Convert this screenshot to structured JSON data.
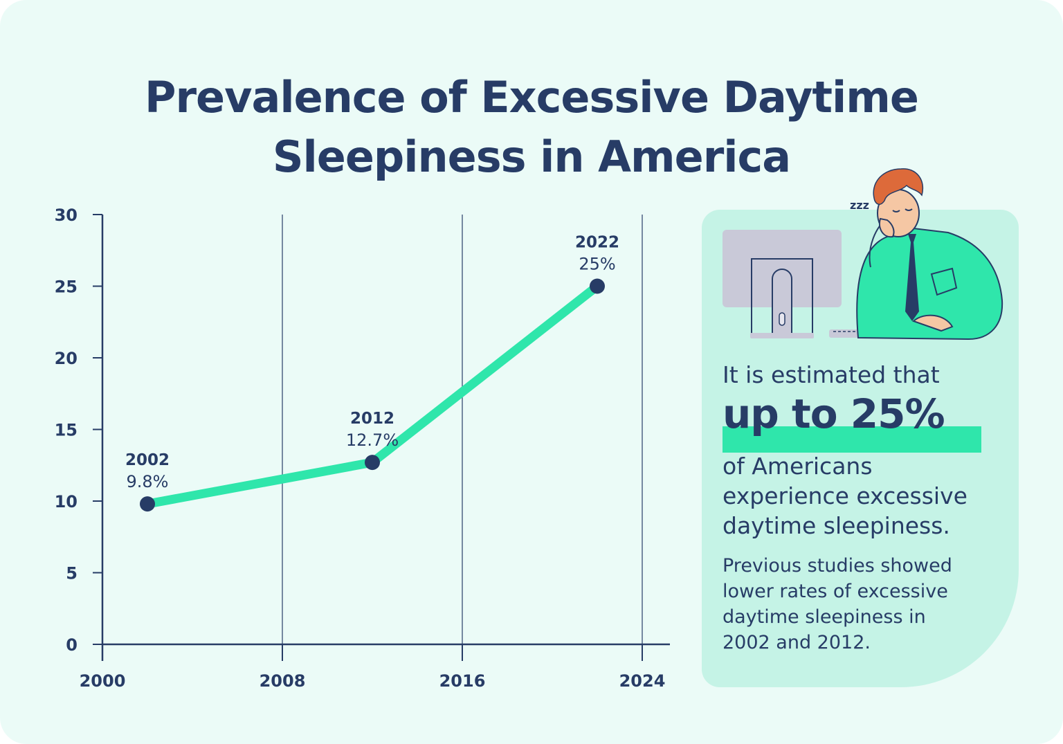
{
  "title": {
    "line1": "Prevalence of Excessive Daytime",
    "line2": "Sleepiness in America"
  },
  "chart_data": {
    "type": "line",
    "x_ticks": [
      "2000",
      "2008",
      "2016",
      "2024"
    ],
    "y_ticks": [
      "0",
      "5",
      "10",
      "15",
      "20",
      "25",
      "30"
    ],
    "xlim": [
      2000,
      2024
    ],
    "ylim": [
      0,
      30
    ],
    "grid": "vertical",
    "series": [
      {
        "points": [
          {
            "x": 2002,
            "y": 9.8,
            "year_label": "2002",
            "value_label": "9.8%"
          },
          {
            "x": 2012,
            "y": 12.7,
            "year_label": "2012",
            "value_label": "12.7%"
          },
          {
            "x": 2022,
            "y": 25,
            "year_label": "2022",
            "value_label": "25%"
          }
        ]
      }
    ],
    "colors": {
      "line": "#2fe6ab",
      "marker": "#273c66",
      "axis": "#273c66"
    }
  },
  "callout": {
    "lead": "It is estimated that",
    "highlight": "up to 25%",
    "follow_lines": [
      "of Americans",
      "experience excessive",
      "daytime sleepiness."
    ],
    "note_lines": [
      "Previous studies showed",
      "lower rates of excessive",
      "daytime sleepiness in",
      "2002 and 2012."
    ]
  },
  "illustration": {
    "icon": "sleepy-office-worker-illustration",
    "snore_text": "zzz"
  },
  "colors": {
    "background": "#ebfbf7",
    "panel": "#c5f3e6",
    "accent": "#2fe6ab",
    "text": "#273c66"
  }
}
